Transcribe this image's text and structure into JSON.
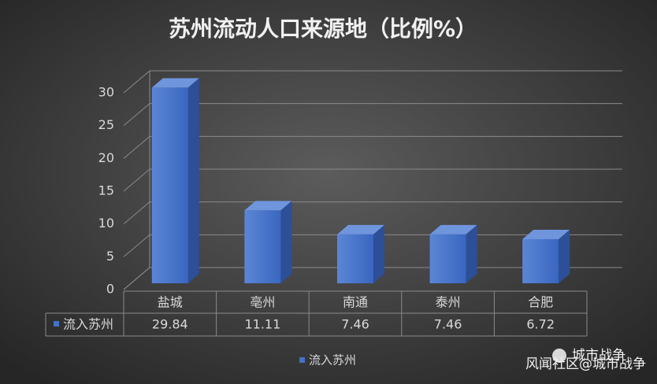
{
  "chart_data": {
    "type": "bar",
    "title": "苏州流动人口来源地（比例%）",
    "categories": [
      "盐城",
      "亳州",
      "南通",
      "泰州",
      "合肥"
    ],
    "series": [
      {
        "name": "流入苏州",
        "color": "#4472c4",
        "values": [
          29.84,
          11.11,
          7.46,
          7.46,
          6.72
        ]
      }
    ],
    "ylim": [
      0,
      30
    ],
    "yticks": [
      0,
      5,
      10,
      15,
      20,
      25,
      30
    ],
    "grid": true,
    "legend": "bottom",
    "data_table": true
  },
  "watermark": {
    "logo_text": "城市战争",
    "text": "风闻社区@城市战争"
  }
}
